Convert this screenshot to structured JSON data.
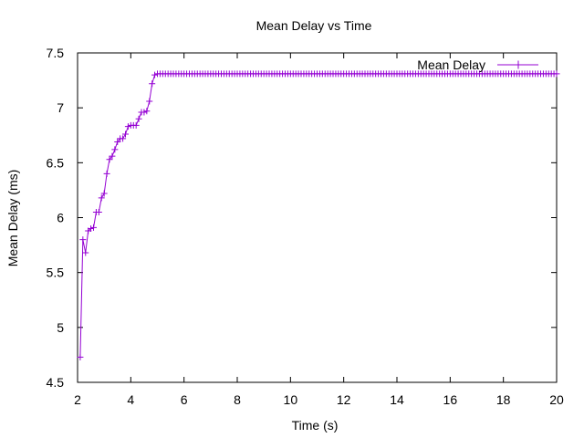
{
  "chart_data": {
    "type": "line",
    "title": "Mean Delay vs Time",
    "xlabel": "Time (s)",
    "ylabel": "Mean Delay (ms)",
    "xlim": [
      2,
      20
    ],
    "ylim": [
      4.5,
      7.5
    ],
    "xticks": [
      2,
      4,
      6,
      8,
      10,
      12,
      14,
      16,
      18,
      20
    ],
    "xtick_labels": [
      "2",
      "4",
      "6",
      "8",
      "10",
      "12",
      "14",
      "16",
      "18",
      "20"
    ],
    "yticks": [
      4.5,
      5,
      5.5,
      6,
      6.5,
      7,
      7.5
    ],
    "ytick_labels": [
      "4.5",
      "5",
      "5.5",
      "6",
      "6.5",
      "7",
      "7.5"
    ],
    "grid": false,
    "legend_position": "top-right",
    "series_color": "#9400d3",
    "series": [
      {
        "name": "Mean Delay",
        "marker": "plus",
        "x": [
          2.1,
          2.2,
          2.3,
          2.4,
          2.5,
          2.6,
          2.7,
          2.8,
          2.9,
          3.0,
          3.1,
          3.2,
          3.3,
          3.4,
          3.5,
          3.6,
          3.7,
          3.8,
          3.9,
          4.0,
          4.1,
          4.2,
          4.3,
          4.4,
          4.5,
          4.6,
          4.7,
          4.8,
          4.9,
          5.0
        ],
        "y": [
          4.73,
          5.8,
          5.68,
          5.88,
          5.9,
          5.91,
          6.05,
          6.05,
          6.18,
          6.22,
          6.4,
          6.53,
          6.56,
          6.62,
          6.69,
          6.72,
          6.72,
          6.76,
          6.83,
          6.84,
          6.84,
          6.84,
          6.9,
          6.96,
          6.96,
          6.97,
          7.06,
          7.22,
          7.3,
          7.31
        ]
      }
    ],
    "plateau": {
      "start": 5.0,
      "end": 20.0,
      "step": 0.1,
      "value": 7.31
    }
  }
}
